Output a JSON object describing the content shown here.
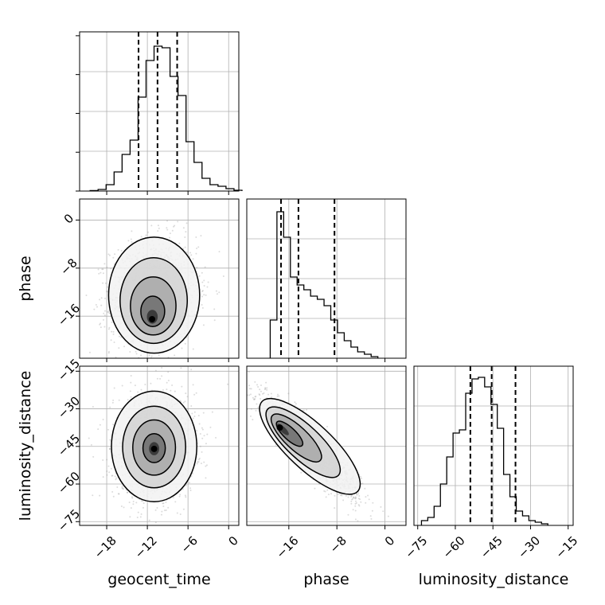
{
  "chart_data": {
    "type": "corner",
    "parameters": [
      "geocent_time",
      "phase",
      "luminosity_distance"
    ],
    "axis_labels": {
      "x": [
        "geocent_time",
        "phase",
        "luminosity_distance"
      ],
      "y": [
        "",
        "phase",
        "luminosity_distance"
      ]
    },
    "ranges": {
      "geocent_time": [
        -22,
        1.5
      ],
      "phase": [
        -23,
        3.5
      ],
      "luminosity_distance": [
        -76.5,
        -13
      ]
    },
    "ticks": {
      "geocent_time": [
        "−18",
        "−12",
        "−6",
        "0"
      ],
      "phase": [
        "−16",
        "−8",
        "0"
      ],
      "luminosity_distance": [
        "−75",
        "−60",
        "−45",
        "−30",
        "−15"
      ]
    },
    "tick_values": {
      "geocent_time": [
        -18,
        -12,
        -6,
        0
      ],
      "phase": [
        -16,
        -8,
        0
      ],
      "luminosity_distance": [
        -75,
        -60,
        -45,
        -30,
        -15
      ]
    },
    "grid": true,
    "histograms": {
      "geocent_time": {
        "bin_start": -20.45,
        "bin_width": 1.18,
        "counts": [
          0.003,
          0.01,
          0.04,
          0.12,
          0.23,
          0.32,
          0.59,
          0.82,
          0.91,
          0.9,
          0.72,
          0.6,
          0.31,
          0.18,
          0.08,
          0.04,
          0.03,
          0.015,
          0.005
        ],
        "quantiles": [
          -13.3,
          -10.5,
          -7.6
        ]
      },
      "phase": {
        "bin_start": -19.1,
        "bin_width": 1.12,
        "counts": [
          0.24,
          0.92,
          0.76,
          0.51,
          0.46,
          0.43,
          0.39,
          0.37,
          0.33,
          0.24,
          0.16,
          0.11,
          0.07,
          0.04,
          0.025,
          0.01
        ],
        "quantiles": [
          -17.3,
          -14.4,
          -8.4
        ]
      },
      "luminosity_distance": {
        "bin_start": -73.5,
        "bin_width": 2.52,
        "counts": [
          0.03,
          0.05,
          0.12,
          0.26,
          0.43,
          0.58,
          0.6,
          0.83,
          0.92,
          0.93,
          0.87,
          0.76,
          0.61,
          0.32,
          0.18,
          0.09,
          0.06,
          0.03,
          0.02,
          0.01
        ],
        "quantiles": [
          -54.0,
          -45.5,
          -36.0
        ]
      }
    },
    "pairs": [
      {
        "x": "geocent_time",
        "y": "phase",
        "mean": [
          -11.0,
          -12.5
        ],
        "sd": [
          3.2,
          4.6
        ],
        "rho": 0.08,
        "mode": [
          -11.3,
          -16.5
        ],
        "points": 1600
      },
      {
        "x": "geocent_time",
        "y": "luminosity_distance",
        "mean": [
          -11.0,
          -45.0
        ],
        "sd": [
          3.0,
          10.5
        ],
        "rho": 0.05,
        "mode": [
          -11.0,
          -46.0
        ],
        "points": 1500
      },
      {
        "x": "phase",
        "y": "luminosity_distance",
        "mean": [
          -12.5,
          -45.0
        ],
        "sd": [
          4.0,
          10.0
        ],
        "rho": -0.9,
        "mode": [
          -17.5,
          -37.5
        ],
        "points": 1500
      }
    ]
  }
}
